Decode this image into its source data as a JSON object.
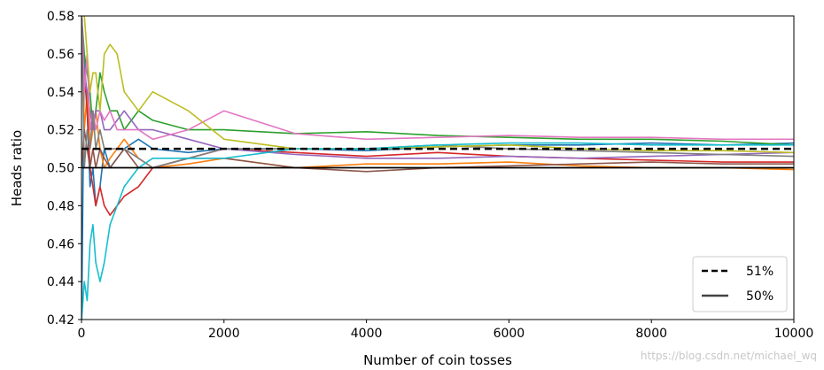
{
  "chart_data": {
    "type": "line",
    "title": "",
    "xlabel": "Number of coin tosses",
    "ylabel": "Heads ratio",
    "xlim": [
      0,
      10000
    ],
    "ylim": [
      0.42,
      0.58
    ],
    "xticks": [
      0,
      2000,
      4000,
      6000,
      8000,
      10000
    ],
    "yticks": [
      0.42,
      0.44,
      0.46,
      0.48,
      0.5,
      0.52,
      0.54,
      0.56,
      0.58
    ],
    "xtick_labels": [
      "0",
      "2000",
      "4000",
      "6000",
      "8000",
      "10000"
    ],
    "ytick_labels": [
      "0.42",
      "0.44",
      "0.46",
      "0.48",
      "0.50",
      "0.52",
      "0.54",
      "0.56",
      "0.58"
    ],
    "grid": false,
    "legend_position": "lower-right",
    "reference_lines": [
      {
        "name": "51%",
        "y": 0.51,
        "style": "dashed",
        "color": "#000000"
      },
      {
        "name": "50%",
        "y": 0.5,
        "style": "solid",
        "color": "#000000"
      }
    ],
    "series": [
      {
        "color": "#1f77b4",
        "x": [
          1,
          40,
          80,
          120,
          160,
          200,
          260,
          320,
          400,
          500,
          600,
          800,
          1000,
          1500,
          2000,
          3000,
          4000,
          5000,
          6000,
          7000,
          8000,
          9000,
          10000
        ],
        "y": [
          0.42,
          0.56,
          0.53,
          0.49,
          0.5,
          0.48,
          0.49,
          0.51,
          0.5,
          0.505,
          0.51,
          0.515,
          0.51,
          0.508,
          0.51,
          0.51,
          0.509,
          0.511,
          0.512,
          0.512,
          0.513,
          0.512,
          0.513
        ]
      },
      {
        "color": "#ff7f0e",
        "x": [
          1,
          40,
          80,
          120,
          160,
          200,
          260,
          320,
          400,
          500,
          600,
          800,
          1000,
          1500,
          2000,
          3000,
          4000,
          5000,
          6000,
          7000,
          8000,
          9000,
          10000
        ],
        "y": [
          0.58,
          0.52,
          0.54,
          0.51,
          0.52,
          0.53,
          0.51,
          0.5,
          0.505,
          0.51,
          0.515,
          0.505,
          0.5,
          0.502,
          0.505,
          0.5,
          0.502,
          0.502,
          0.503,
          0.501,
          0.5,
          0.5,
          0.499
        ]
      },
      {
        "color": "#2ca02c",
        "x": [
          1,
          40,
          80,
          120,
          160,
          200,
          260,
          320,
          400,
          500,
          600,
          800,
          1000,
          1500,
          2000,
          3000,
          4000,
          5000,
          6000,
          7000,
          8000,
          9000,
          10000
        ],
        "y": [
          0.58,
          0.56,
          0.55,
          0.54,
          0.52,
          0.53,
          0.55,
          0.54,
          0.53,
          0.53,
          0.52,
          0.53,
          0.525,
          0.52,
          0.52,
          0.518,
          0.519,
          0.517,
          0.516,
          0.515,
          0.515,
          0.514,
          0.512
        ]
      },
      {
        "color": "#d62728",
        "x": [
          1,
          40,
          80,
          120,
          160,
          200,
          260,
          320,
          400,
          500,
          600,
          800,
          1000,
          1500,
          2000,
          3000,
          4000,
          5000,
          6000,
          7000,
          8000,
          9000,
          10000
        ],
        "y": [
          0.58,
          0.55,
          0.53,
          0.5,
          0.49,
          0.48,
          0.49,
          0.48,
          0.475,
          0.48,
          0.485,
          0.49,
          0.5,
          0.505,
          0.51,
          0.508,
          0.506,
          0.508,
          0.506,
          0.505,
          0.504,
          0.503,
          0.503
        ]
      },
      {
        "color": "#9467bd",
        "x": [
          1,
          40,
          80,
          120,
          160,
          200,
          260,
          320,
          400,
          500,
          600,
          800,
          1000,
          1500,
          2000,
          3000,
          4000,
          5000,
          6000,
          7000,
          8000,
          9000,
          10000
        ],
        "y": [
          0.58,
          0.55,
          0.54,
          0.53,
          0.52,
          0.53,
          0.53,
          0.52,
          0.52,
          0.525,
          0.53,
          0.52,
          0.52,
          0.515,
          0.51,
          0.507,
          0.505,
          0.505,
          0.506,
          0.505,
          0.506,
          0.507,
          0.508
        ]
      },
      {
        "color": "#8c564b",
        "x": [
          1,
          40,
          80,
          120,
          160,
          200,
          260,
          320,
          400,
          500,
          600,
          800,
          1000,
          1500,
          2000,
          3000,
          4000,
          5000,
          6000,
          7000,
          8000,
          9000,
          10000
        ],
        "y": [
          0.5,
          0.52,
          0.51,
          0.5,
          0.51,
          0.5,
          0.51,
          0.505,
          0.5,
          0.505,
          0.51,
          0.5,
          0.5,
          0.505,
          0.505,
          0.5,
          0.498,
          0.5,
          0.501,
          0.502,
          0.503,
          0.502,
          0.502
        ]
      },
      {
        "color": "#e377c2",
        "x": [
          1,
          40,
          80,
          120,
          160,
          200,
          260,
          320,
          400,
          500,
          600,
          800,
          1000,
          1500,
          2000,
          3000,
          4000,
          5000,
          6000,
          7000,
          8000,
          9000,
          10000
        ],
        "y": [
          0.58,
          0.54,
          0.56,
          0.52,
          0.53,
          0.52,
          0.53,
          0.525,
          0.53,
          0.52,
          0.52,
          0.52,
          0.515,
          0.52,
          0.53,
          0.518,
          0.515,
          0.516,
          0.517,
          0.516,
          0.516,
          0.515,
          0.515
        ]
      },
      {
        "color": "#7f7f7f",
        "x": [
          1,
          40,
          80,
          120,
          160,
          200,
          260,
          320,
          400,
          500,
          600,
          800,
          1000,
          1500,
          2000,
          3000,
          4000,
          5000,
          6000,
          7000,
          8000,
          9000,
          10000
        ],
        "y": [
          0.58,
          0.5,
          0.52,
          0.51,
          0.53,
          0.51,
          0.52,
          0.51,
          0.51,
          0.51,
          0.51,
          0.505,
          0.5,
          0.505,
          0.51,
          0.51,
          0.51,
          0.512,
          0.51,
          0.509,
          0.508,
          0.507,
          0.506
        ]
      },
      {
        "color": "#bcbd22",
        "x": [
          1,
          40,
          80,
          120,
          160,
          200,
          260,
          320,
          400,
          500,
          600,
          800,
          1000,
          1500,
          2000,
          3000,
          4000,
          5000,
          6000,
          7000,
          8000,
          9000,
          10000
        ],
        "y": [
          0.58,
          0.58,
          0.56,
          0.54,
          0.55,
          0.55,
          0.53,
          0.56,
          0.565,
          0.56,
          0.54,
          0.53,
          0.54,
          0.53,
          0.515,
          0.51,
          0.51,
          0.511,
          0.512,
          0.51,
          0.509,
          0.509,
          0.508
        ]
      },
      {
        "color": "#17becf",
        "x": [
          1,
          40,
          80,
          120,
          160,
          200,
          260,
          320,
          400,
          500,
          600,
          800,
          1000,
          1500,
          2000,
          3000,
          4000,
          5000,
          6000,
          7000,
          8000,
          9000,
          10000
        ],
        "y": [
          0.42,
          0.44,
          0.43,
          0.46,
          0.47,
          0.45,
          0.44,
          0.45,
          0.47,
          0.48,
          0.49,
          0.5,
          0.505,
          0.505,
          0.505,
          0.51,
          0.51,
          0.512,
          0.513,
          0.513,
          0.512,
          0.512,
          0.512
        ]
      }
    ]
  },
  "watermark_text": "https://blog.csdn.net/michael_wq"
}
